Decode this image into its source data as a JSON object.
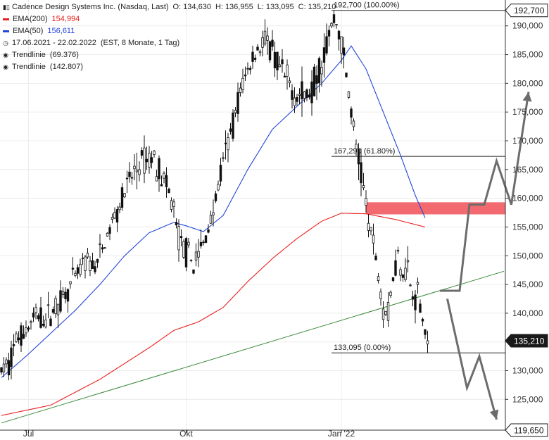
{
  "header": {
    "title": "Cadence Design Systems Inc. (Nasdaq, Last)",
    "ohlc": [
      {
        "key": "O:",
        "value": "134,630"
      },
      {
        "key": "H:",
        "value": "136,955"
      },
      {
        "key": "L:",
        "value": "133,095"
      },
      {
        "key": "C:",
        "value": "135,210"
      }
    ],
    "period": "17.06.2021 - 22.02.2022",
    "period_info": "(EST, 8 Monate, 1 Tag)",
    "ema200": {
      "label": "EMA(200)",
      "value": "154,994",
      "color": "#e8211f"
    },
    "ema50": {
      "label": "EMA(50)",
      "value": "156,611",
      "color": "#2346d8"
    },
    "trend1": {
      "label": "Trendlinie",
      "value": "(69.376)"
    },
    "trend2": {
      "label": "Trendlinie",
      "value": "(142.807)"
    }
  },
  "chart_data": {
    "type": "candlestick",
    "instrument": "Cadence Design Systems Inc. (Nasdaq, Last)",
    "ylim": [
      119650,
      194500
    ],
    "yticks": [
      125000,
      130000,
      135000,
      140000,
      145000,
      150000,
      155000,
      160000,
      165000,
      170000,
      175000,
      180000,
      185000,
      190000
    ],
    "ytick_labels": [
      "125,000",
      "130,000",
      "135,000",
      "140,000",
      "145,000",
      "150,000",
      "155,000",
      "160,000",
      "165,000",
      "170,000",
      "175,000",
      "180,000",
      "185,000",
      "190,000"
    ],
    "xticks": [
      {
        "index": 11,
        "label": "Jul"
      },
      {
        "index": 75,
        "label": "Okt"
      },
      {
        "index": 138,
        "label": "Jan '22"
      }
    ],
    "price_tags": [
      {
        "value": 192700,
        "label": "192,700",
        "style": "outline"
      },
      {
        "value": 135210,
        "label": "135,210",
        "style": "filled"
      },
      {
        "value": 119650,
        "label": "119,650",
        "style": "outline"
      }
    ],
    "fibonacci": [
      {
        "value": 192700,
        "label": "192,700 (100.00%)",
        "from_index": 134
      },
      {
        "value": 167290,
        "label": "167,290 (61.80%)",
        "from_index": 134
      },
      {
        "value": 133095,
        "label": "133,095 (0.00%)",
        "from_index": 134
      }
    ],
    "resistance_zone": {
      "from": 157200,
      "to": 159300,
      "from_index": 148,
      "color": "#f26a6f"
    },
    "trendlines": [
      {
        "name": "Trendlinie (69.376)",
        "color": "#3a8a3a",
        "points": [
          {
            "index": 0,
            "value": 120900
          },
          {
            "index": 204,
            "value": 147300
          }
        ]
      }
    ],
    "ema200": [
      {
        "index": 0,
        "value": 122200
      },
      {
        "index": 20,
        "value": 124000
      },
      {
        "index": 40,
        "value": 128500
      },
      {
        "index": 60,
        "value": 134000
      },
      {
        "index": 70,
        "value": 137000
      },
      {
        "index": 80,
        "value": 138500
      },
      {
        "index": 90,
        "value": 141000
      },
      {
        "index": 100,
        "value": 145500
      },
      {
        "index": 110,
        "value": 149500
      },
      {
        "index": 120,
        "value": 153000
      },
      {
        "index": 130,
        "value": 156000
      },
      {
        "index": 138,
        "value": 157400
      },
      {
        "index": 148,
        "value": 157300
      },
      {
        "index": 160,
        "value": 156300
      },
      {
        "index": 172,
        "value": 155000
      }
    ],
    "ema50": [
      {
        "index": 0,
        "value": 128800
      },
      {
        "index": 10,
        "value": 132500
      },
      {
        "index": 20,
        "value": 136500
      },
      {
        "index": 30,
        "value": 140500
      },
      {
        "index": 40,
        "value": 145000
      },
      {
        "index": 50,
        "value": 150000
      },
      {
        "index": 60,
        "value": 154000
      },
      {
        "index": 70,
        "value": 155800
      },
      {
        "index": 75,
        "value": 155200
      },
      {
        "index": 82,
        "value": 154200
      },
      {
        "index": 90,
        "value": 157000
      },
      {
        "index": 100,
        "value": 165000
      },
      {
        "index": 110,
        "value": 172000
      },
      {
        "index": 120,
        "value": 176000
      },
      {
        "index": 130,
        "value": 180000
      },
      {
        "index": 138,
        "value": 184000
      },
      {
        "index": 142,
        "value": 186500
      },
      {
        "index": 148,
        "value": 182500
      },
      {
        "index": 155,
        "value": 175000
      },
      {
        "index": 162,
        "value": 167500
      },
      {
        "index": 168,
        "value": 160500
      },
      {
        "index": 172,
        "value": 156600
      }
    ],
    "price_path": [
      {
        "index": 0,
        "value": 130000
      },
      {
        "index": 3,
        "value": 131000
      },
      {
        "index": 6,
        "value": 135500
      },
      {
        "index": 10,
        "value": 137000
      },
      {
        "index": 14,
        "value": 139500
      },
      {
        "index": 18,
        "value": 139000
      },
      {
        "index": 22,
        "value": 141000
      },
      {
        "index": 26,
        "value": 143500
      },
      {
        "index": 30,
        "value": 146000
      },
      {
        "index": 34,
        "value": 149000
      },
      {
        "index": 38,
        "value": 148000
      },
      {
        "index": 42,
        "value": 152000
      },
      {
        "index": 46,
        "value": 157000
      },
      {
        "index": 50,
        "value": 161000
      },
      {
        "index": 54,
        "value": 164500
      },
      {
        "index": 58,
        "value": 166500
      },
      {
        "index": 62,
        "value": 167000
      },
      {
        "index": 66,
        "value": 163000
      },
      {
        "index": 70,
        "value": 158000
      },
      {
        "index": 72,
        "value": 153000
      },
      {
        "index": 75,
        "value": 150500
      },
      {
        "index": 78,
        "value": 148500
      },
      {
        "index": 82,
        "value": 152000
      },
      {
        "index": 86,
        "value": 158000
      },
      {
        "index": 90,
        "value": 166000
      },
      {
        "index": 94,
        "value": 173000
      },
      {
        "index": 98,
        "value": 180000
      },
      {
        "index": 102,
        "value": 184500
      },
      {
        "index": 106,
        "value": 187500
      },
      {
        "index": 110,
        "value": 185000
      },
      {
        "index": 114,
        "value": 181500
      },
      {
        "index": 118,
        "value": 179000
      },
      {
        "index": 122,
        "value": 177500
      },
      {
        "index": 126,
        "value": 179000
      },
      {
        "index": 130,
        "value": 184000
      },
      {
        "index": 133,
        "value": 188500
      },
      {
        "index": 135,
        "value": 191000
      },
      {
        "index": 137,
        "value": 189500
      },
      {
        "index": 139,
        "value": 184000
      },
      {
        "index": 141,
        "value": 178500
      },
      {
        "index": 143,
        "value": 171500
      },
      {
        "index": 145,
        "value": 166500
      },
      {
        "index": 147,
        "value": 161500
      },
      {
        "index": 149,
        "value": 156500
      },
      {
        "index": 151,
        "value": 152000
      },
      {
        "index": 153,
        "value": 147000
      },
      {
        "index": 155,
        "value": 141000
      },
      {
        "index": 157,
        "value": 140000
      },
      {
        "index": 159,
        "value": 146500
      },
      {
        "index": 161,
        "value": 150500
      },
      {
        "index": 163,
        "value": 147500
      },
      {
        "index": 165,
        "value": 148000
      },
      {
        "index": 167,
        "value": 142000
      },
      {
        "index": 169,
        "value": 144000
      },
      {
        "index": 171,
        "value": 139000
      },
      {
        "index": 173,
        "value": 135210
      }
    ],
    "scenario_arrows": [
      {
        "direction": "up",
        "color": "#6c6c6c",
        "points": [
          {
            "index": 178,
            "value": 143900
          },
          {
            "index": 186,
            "value": 143900
          },
          {
            "index": 190,
            "value": 158900
          },
          {
            "index": 196,
            "value": 158900
          },
          {
            "index": 201,
            "value": 166500
          },
          {
            "index": 207,
            "value": 158900
          },
          {
            "index": 214,
            "value": 178500
          }
        ]
      },
      {
        "direction": "down",
        "color": "#6c6c6c",
        "points": [
          {
            "index": 181,
            "value": 142500
          },
          {
            "index": 189,
            "value": 127000
          },
          {
            "index": 194,
            "value": 132500
          },
          {
            "index": 201,
            "value": 121500
          }
        ]
      }
    ]
  }
}
